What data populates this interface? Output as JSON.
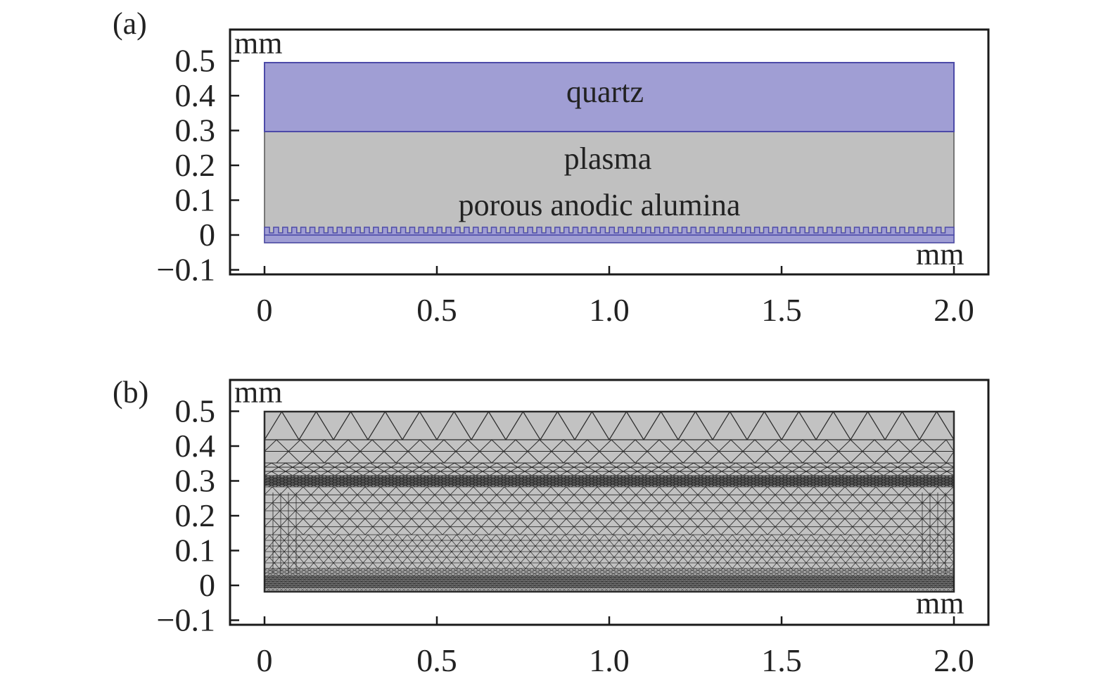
{
  "colors": {
    "quartz": "#a09ed4",
    "quartz_edge": "#4c4aa8",
    "plasma": "#c0c0c0",
    "mesh_background": "#c2c2c2",
    "mesh_lines": "#2b2b2b",
    "frame": "#1a1a1a"
  },
  "panels": [
    {
      "id": "a",
      "label": "(a)",
      "axis_unit_y": "mm",
      "axis_unit_x": "mm",
      "x_ticks": [
        "0",
        "0.5",
        "1.0",
        "1.5",
        "2.0"
      ],
      "y_ticks": [
        "0.5",
        "0.4",
        "0.3",
        "0.2",
        "0.1",
        "0",
        "−0.1"
      ],
      "regions": {
        "quartz_label": "quartz",
        "plasma_label": "plasma",
        "alumina_label": "porous anodic alumina"
      }
    },
    {
      "id": "b",
      "label": "(b)",
      "axis_unit_y": "mm",
      "axis_unit_x": "mm",
      "x_ticks": [
        "0",
        "0.5",
        "1.0",
        "1.5",
        "2.0"
      ],
      "y_ticks": [
        "0.5",
        "0.4",
        "0.3",
        "0.2",
        "0.1",
        "0",
        "−0.1"
      ]
    }
  ],
  "chart_data": [
    {
      "type": "diagram",
      "panel": "a",
      "x_range_mm": [
        0,
        2.0
      ],
      "y_range_mm": [
        -0.1,
        0.5
      ],
      "layers": [
        {
          "name": "quartz",
          "y_bottom_mm": 0.3,
          "y_top_mm": 0.5
        },
        {
          "name": "plasma",
          "y_bottom_mm": 0.02,
          "y_top_mm": 0.3
        },
        {
          "name": "porous anodic alumina",
          "y_bottom_mm": -0.02,
          "y_top_mm": 0.02
        }
      ]
    },
    {
      "type": "mesh",
      "panel": "b",
      "x_range_mm": [
        0,
        2.0
      ],
      "y_range_mm": [
        -0.1,
        0.5
      ]
    }
  ]
}
